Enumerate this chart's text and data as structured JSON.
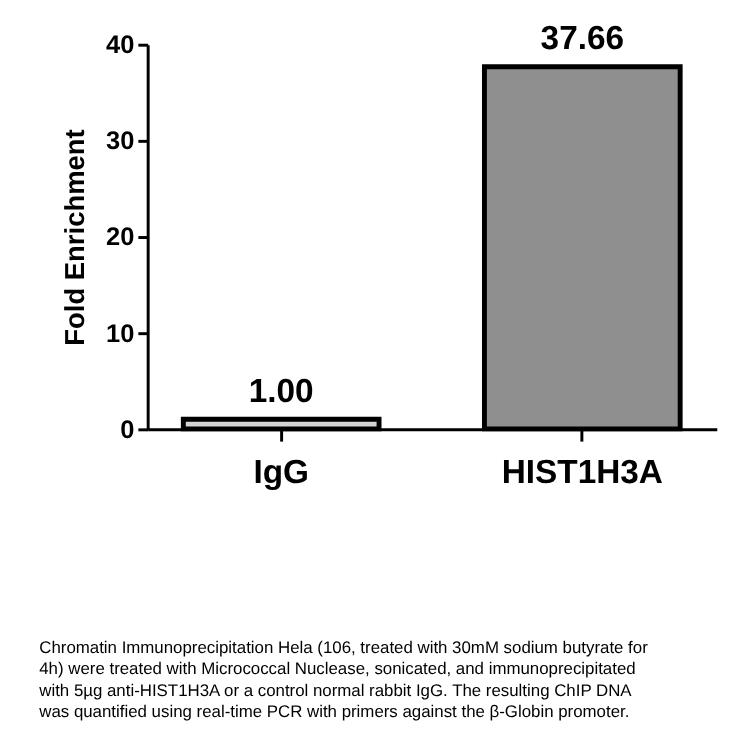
{
  "chart_data": {
    "type": "bar",
    "ylabel": "Fold Enrichment",
    "categories": [
      "IgG",
      "HIST1H3A"
    ],
    "values": [
      1.0,
      37.66
    ],
    "colors": [
      "#d4d4d4",
      "#8f8f8f"
    ],
    "value_labels": [
      "1.00",
      "37.66"
    ],
    "ylim": [
      0,
      40
    ],
    "yticks": [
      0,
      10,
      20,
      30,
      40
    ],
    "grid": false,
    "annotations": [
      "Chromatin Immunoprecipitation Hela (106, treated with 30mM sodium butyrate for 4h) were treated with Micrococcal Nuclease, sonicated, and immunoprecipitated with 5µg anti-HIST1H3A or a control normal rabbit IgG. The resulting ChIP DNA was quantified using real-time PCR with primers against the β-Globin promoter."
    ]
  }
}
